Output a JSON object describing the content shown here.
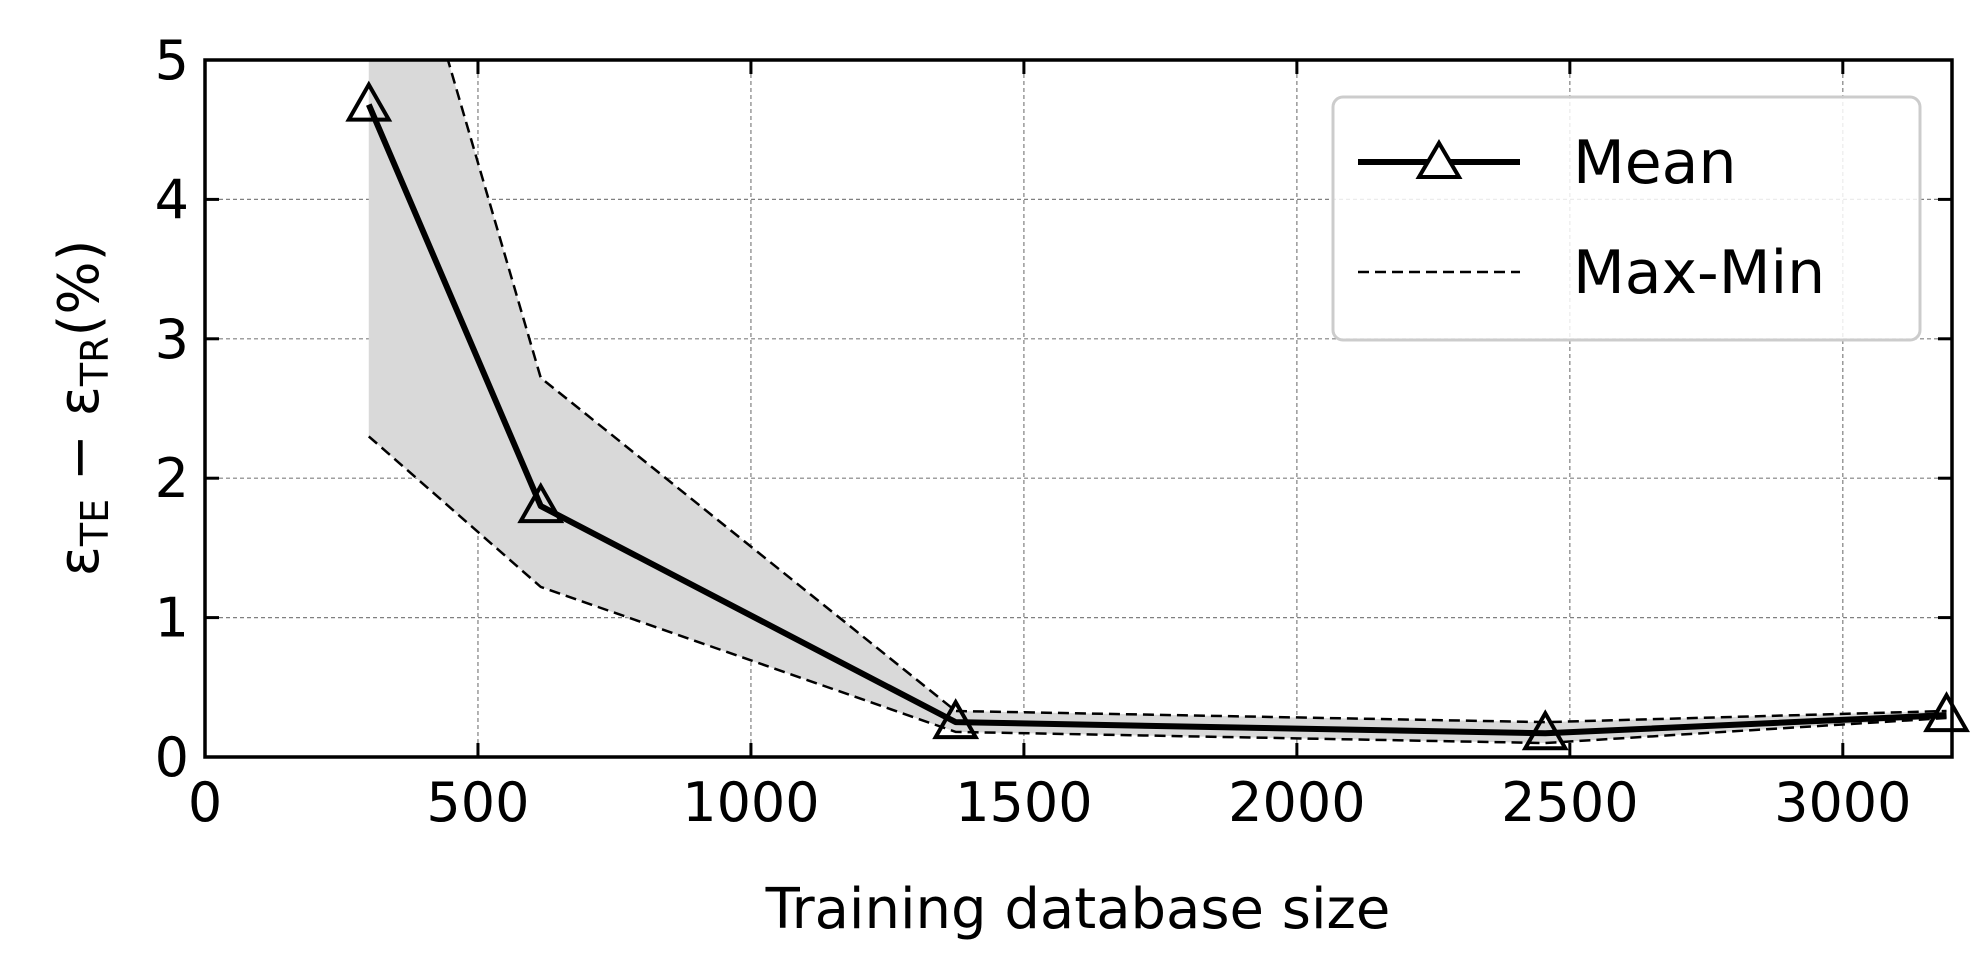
{
  "chart_data": {
    "type": "line",
    "title": "",
    "xlabel": "Training database size",
    "ylabel": {
      "symbol": "ε",
      "sub_te": "TE",
      "minus": " − ",
      "sub_tr": "TR",
      "suffix": "(%)"
    },
    "xlim": [
      0,
      3200
    ],
    "ylim": [
      0,
      5
    ],
    "xticks": [
      0,
      500,
      1000,
      1500,
      2000,
      2500,
      3000
    ],
    "yticks": [
      0,
      1,
      2,
      3,
      4,
      5
    ],
    "xtick_labels": [
      "0",
      "500",
      "1000",
      "1500",
      "2000",
      "2500",
      "3000"
    ],
    "ytick_labels": [
      "0",
      "1",
      "2",
      "3",
      "4",
      "5"
    ],
    "grid": true,
    "legend_position": "top-right",
    "series": [
      {
        "name": "Mean",
        "style": "solid",
        "marker": "triangle",
        "x": [
          300,
          615,
          1375,
          2455,
          3190
        ],
        "y": [
          4.68,
          1.8,
          0.25,
          0.17,
          0.3
        ]
      },
      {
        "name": "Max-Min",
        "style": "dashed",
        "upper": {
          "x": [
            300,
            445,
            615,
            1375,
            2455,
            3190
          ],
          "y": [
            5.5,
            5.0,
            2.72,
            0.33,
            0.25,
            0.33
          ]
        },
        "lower": {
          "x": [
            300,
            615,
            1375,
            2455,
            3190
          ],
          "y": [
            2.3,
            1.22,
            0.18,
            0.1,
            0.28
          ]
        }
      }
    ],
    "colors": {
      "mean": "#000000",
      "band_fill": "#d9d9d9",
      "grid": "#808080"
    }
  }
}
